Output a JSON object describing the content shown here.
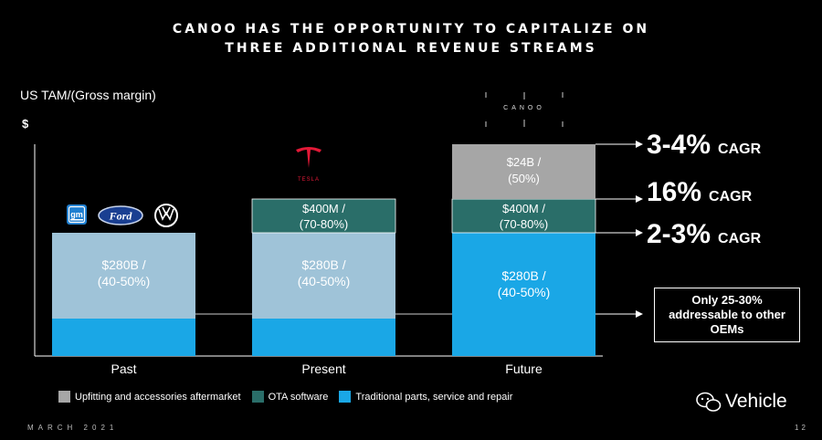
{
  "title": {
    "line1": "CANOO HAS THE OPPORTUNITY TO CAPITALIZE ON",
    "line2": "THREE ADDITIONAL REVENUE STREAMS"
  },
  "y_label": "US TAM/(Gross margin)",
  "y_unit": "$",
  "logos": {
    "gm": "gm",
    "ford": "Ford",
    "tesla": "TESLA",
    "canoo": "CANOO"
  },
  "chart_data": {
    "type": "bar",
    "stacked": true,
    "categories": [
      "Past",
      "Present",
      "Future"
    ],
    "series": [
      {
        "name": "Traditional parts, service and repair",
        "color": "#1aa7e6",
        "segments": [
          {
            "highlight_fraction": 0.3,
            "label_line1": "$280B /",
            "label_line2": "(40-50%)",
            "fill_above": "#9fc3d8"
          },
          {
            "highlight_fraction": 0.3,
            "label_line1": "$280B /",
            "label_line2": "(40-50%)",
            "fill_above": "#9fc3d8"
          },
          {
            "highlight_fraction": 1.0,
            "label_line1": "$280B /",
            "label_line2": "(40-50%)",
            "fill_above": "#1aa7e6"
          }
        ]
      },
      {
        "name": "OTA software",
        "color": "#2a6e69",
        "segments": [
          null,
          {
            "label_line1": "$400M /",
            "label_line2": "(70-80%)"
          },
          {
            "label_line1": "$400M /",
            "label_line2": "(70-80%)"
          }
        ]
      },
      {
        "name": "Upfitting and accessories aftermarket",
        "color": "#a6a6a6",
        "segments": [
          null,
          null,
          {
            "label_line1": "$24B /",
            "label_line2": "(50%)"
          }
        ]
      }
    ],
    "legend_position": "bottom"
  },
  "cagr": [
    {
      "big": "3-4%",
      "small": "CAGR"
    },
    {
      "big": "16%",
      "small": "CAGR"
    },
    {
      "big": "2-3%",
      "small": "CAGR"
    }
  ],
  "addressable_note": "Only 25-30% addressable to other OEMs",
  "footer": {
    "date": "MARCH 2021",
    "page": "12",
    "watermark": "Vehicle"
  }
}
